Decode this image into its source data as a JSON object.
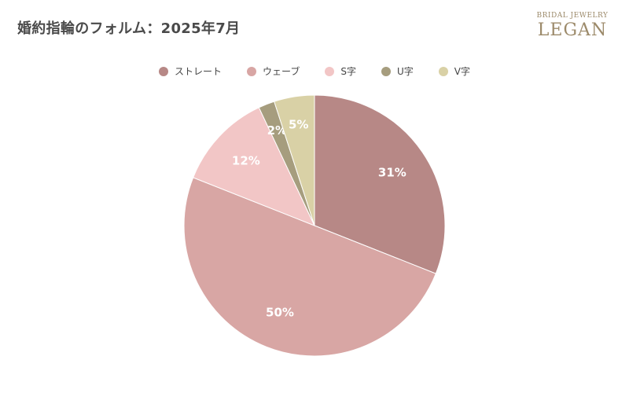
{
  "title": "婚約指輪のフォルム：2025年7月",
  "logo": {
    "subtitle": "BRIDAL JEWELRY",
    "name": "LEGAN"
  },
  "chart_data": {
    "type": "pie",
    "title": "婚約指輪のフォルム：2025年7月",
    "legend_position": "top",
    "categories": [
      "ストレート",
      "ウェーブ",
      "S字",
      "U字",
      "V字"
    ],
    "values": [
      31,
      50,
      12,
      2,
      5
    ],
    "labels": [
      "31%",
      "50%",
      "12%",
      "2%",
      "5%"
    ],
    "colors": [
      "#b78886",
      "#d8a6a4",
      "#f2c6c6",
      "#a69d7e",
      "#d9d1a6"
    ]
  }
}
